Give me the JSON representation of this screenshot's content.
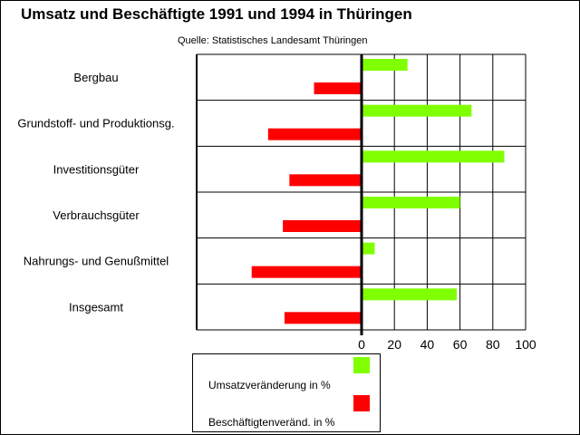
{
  "chart_data": {
    "type": "bar",
    "orientation": "horizontal",
    "title": "Umsatz und Beschäftigte 1991 und 1994 in Thüringen",
    "subtitle": "Quelle: Statistisches Landesamt Thüringen",
    "categories": [
      "Bergbau",
      "Grundstoff- und Produktionsg.",
      "Investitionsgüter",
      "Verbrauchsgüter",
      "Nahrungs- und Genußmittel",
      "Insgesamt"
    ],
    "series": [
      {
        "name": "Umsatzveränderung in %",
        "color": "#80ff00",
        "values": [
          28,
          67,
          87,
          60,
          8,
          58
        ]
      },
      {
        "name": "Beschäftigtenveränd. in %",
        "color": "#ff0000",
        "values": [
          -29,
          -57,
          -44,
          -48,
          -67,
          -47
        ]
      }
    ],
    "xticks": [
      "0",
      "20",
      "40",
      "60",
      "80",
      "100"
    ],
    "xlim": [
      -100,
      100
    ],
    "grid": true,
    "legend": "bottom"
  }
}
